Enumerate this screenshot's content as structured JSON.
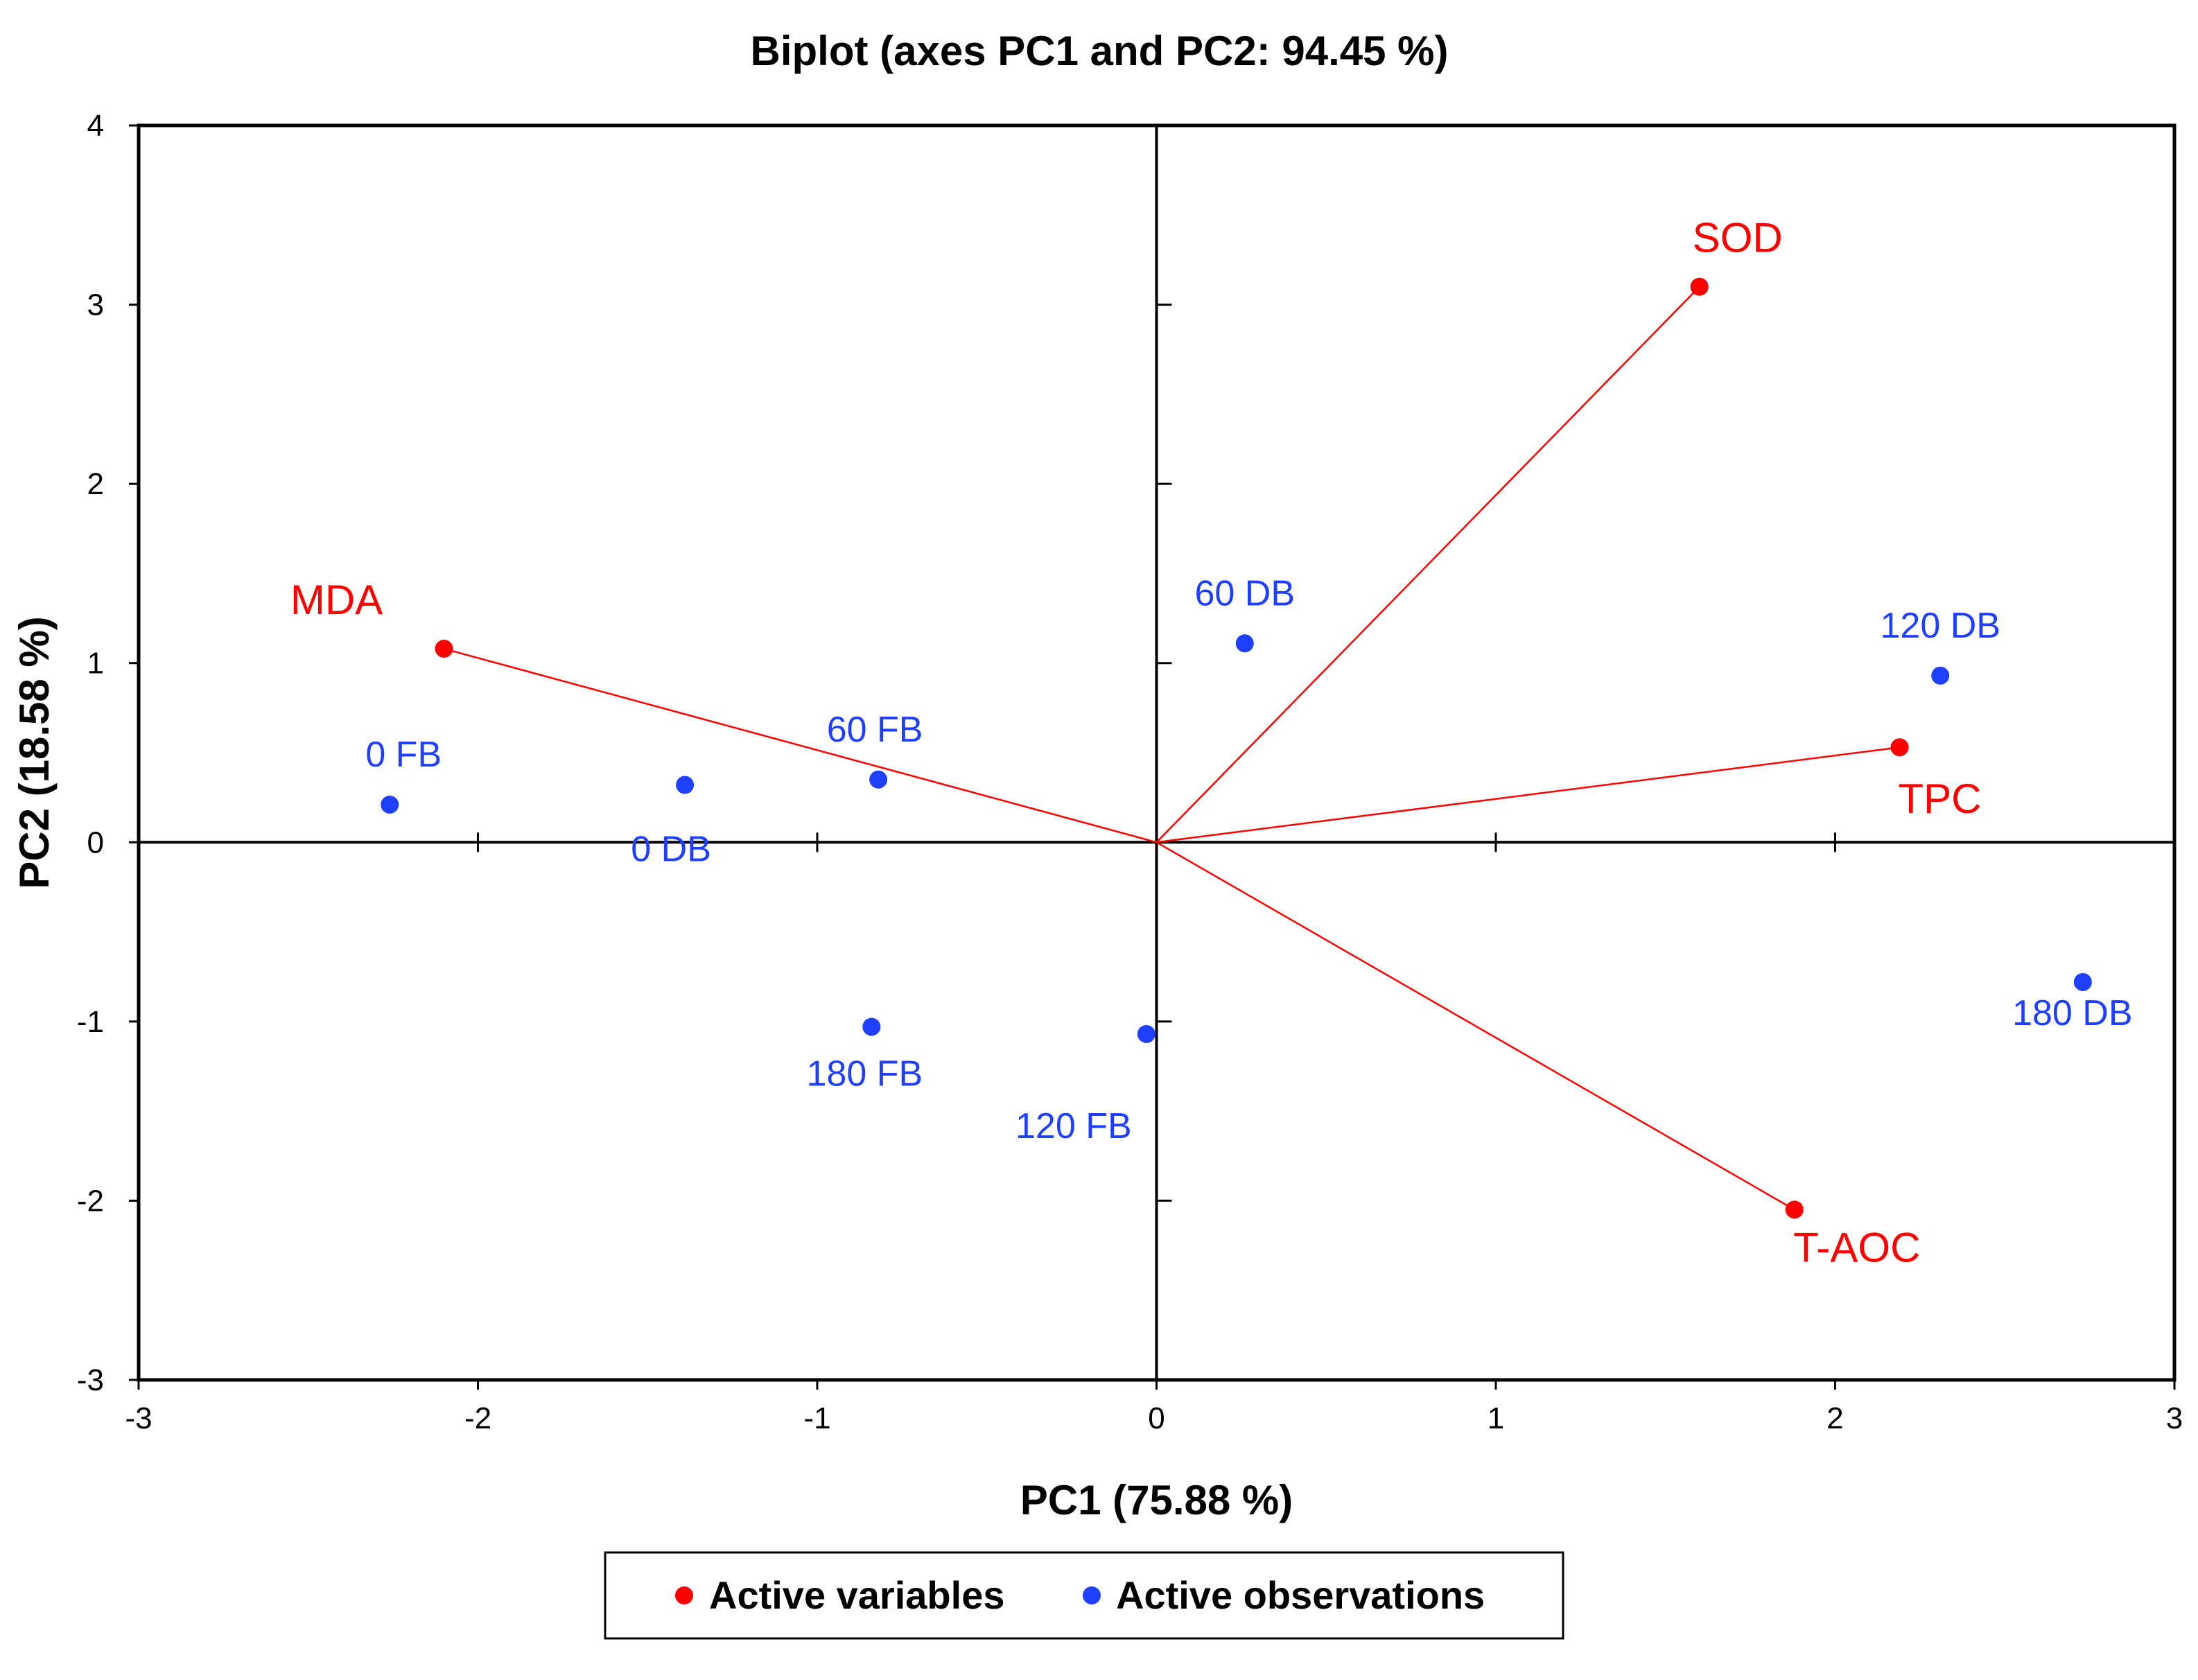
{
  "chart_data": {
    "type": "scatter",
    "title": "Biplot (axes PC1 and PC2: 94.45 %)",
    "xlabel": "PC1 (75.88 %)",
    "ylabel": "PC2 (18.58 %)",
    "xlim": [
      -3,
      3
    ],
    "ylim": [
      -3,
      4
    ],
    "xticks": [
      "-3",
      "-2",
      "-1",
      "0",
      "1",
      "2",
      "3"
    ],
    "yticks": [
      "-3",
      "-2",
      "-1",
      "0",
      "1",
      "2",
      "3",
      "4"
    ],
    "grid": false,
    "colors": {
      "variables": "#ff0000",
      "observations": "#1f3fff"
    },
    "legend": {
      "position": "bottom-center",
      "entries": [
        "Active variables",
        "Active observations"
      ]
    },
    "series": [
      {
        "name": "Active variables",
        "points": [
          {
            "label": "SOD",
            "x": 1.6,
            "y": 3.1
          },
          {
            "label": "MDA",
            "x": -2.1,
            "y": 1.08
          },
          {
            "label": "TPC",
            "x": 2.19,
            "y": 0.53
          },
          {
            "label": "T-AOC",
            "x": 1.88,
            "y": -2.05
          }
        ]
      },
      {
        "name": "Active observations",
        "points": [
          {
            "label": "60 DB",
            "x": 0.26,
            "y": 1.11
          },
          {
            "label": "120 DB",
            "x": 2.31,
            "y": 0.93
          },
          {
            "label": "0 FB",
            "x": -2.26,
            "y": 0.21
          },
          {
            "label": "0 DB",
            "x": -1.39,
            "y": 0.32
          },
          {
            "label": "60 FB",
            "x": -0.82,
            "y": 0.35
          },
          {
            "label": "180 FB",
            "x": -0.84,
            "y": -1.03
          },
          {
            "label": "120 FB",
            "x": -0.03,
            "y": -1.07
          },
          {
            "label": "180 DB",
            "x": 2.73,
            "y": -0.78
          }
        ]
      }
    ]
  }
}
